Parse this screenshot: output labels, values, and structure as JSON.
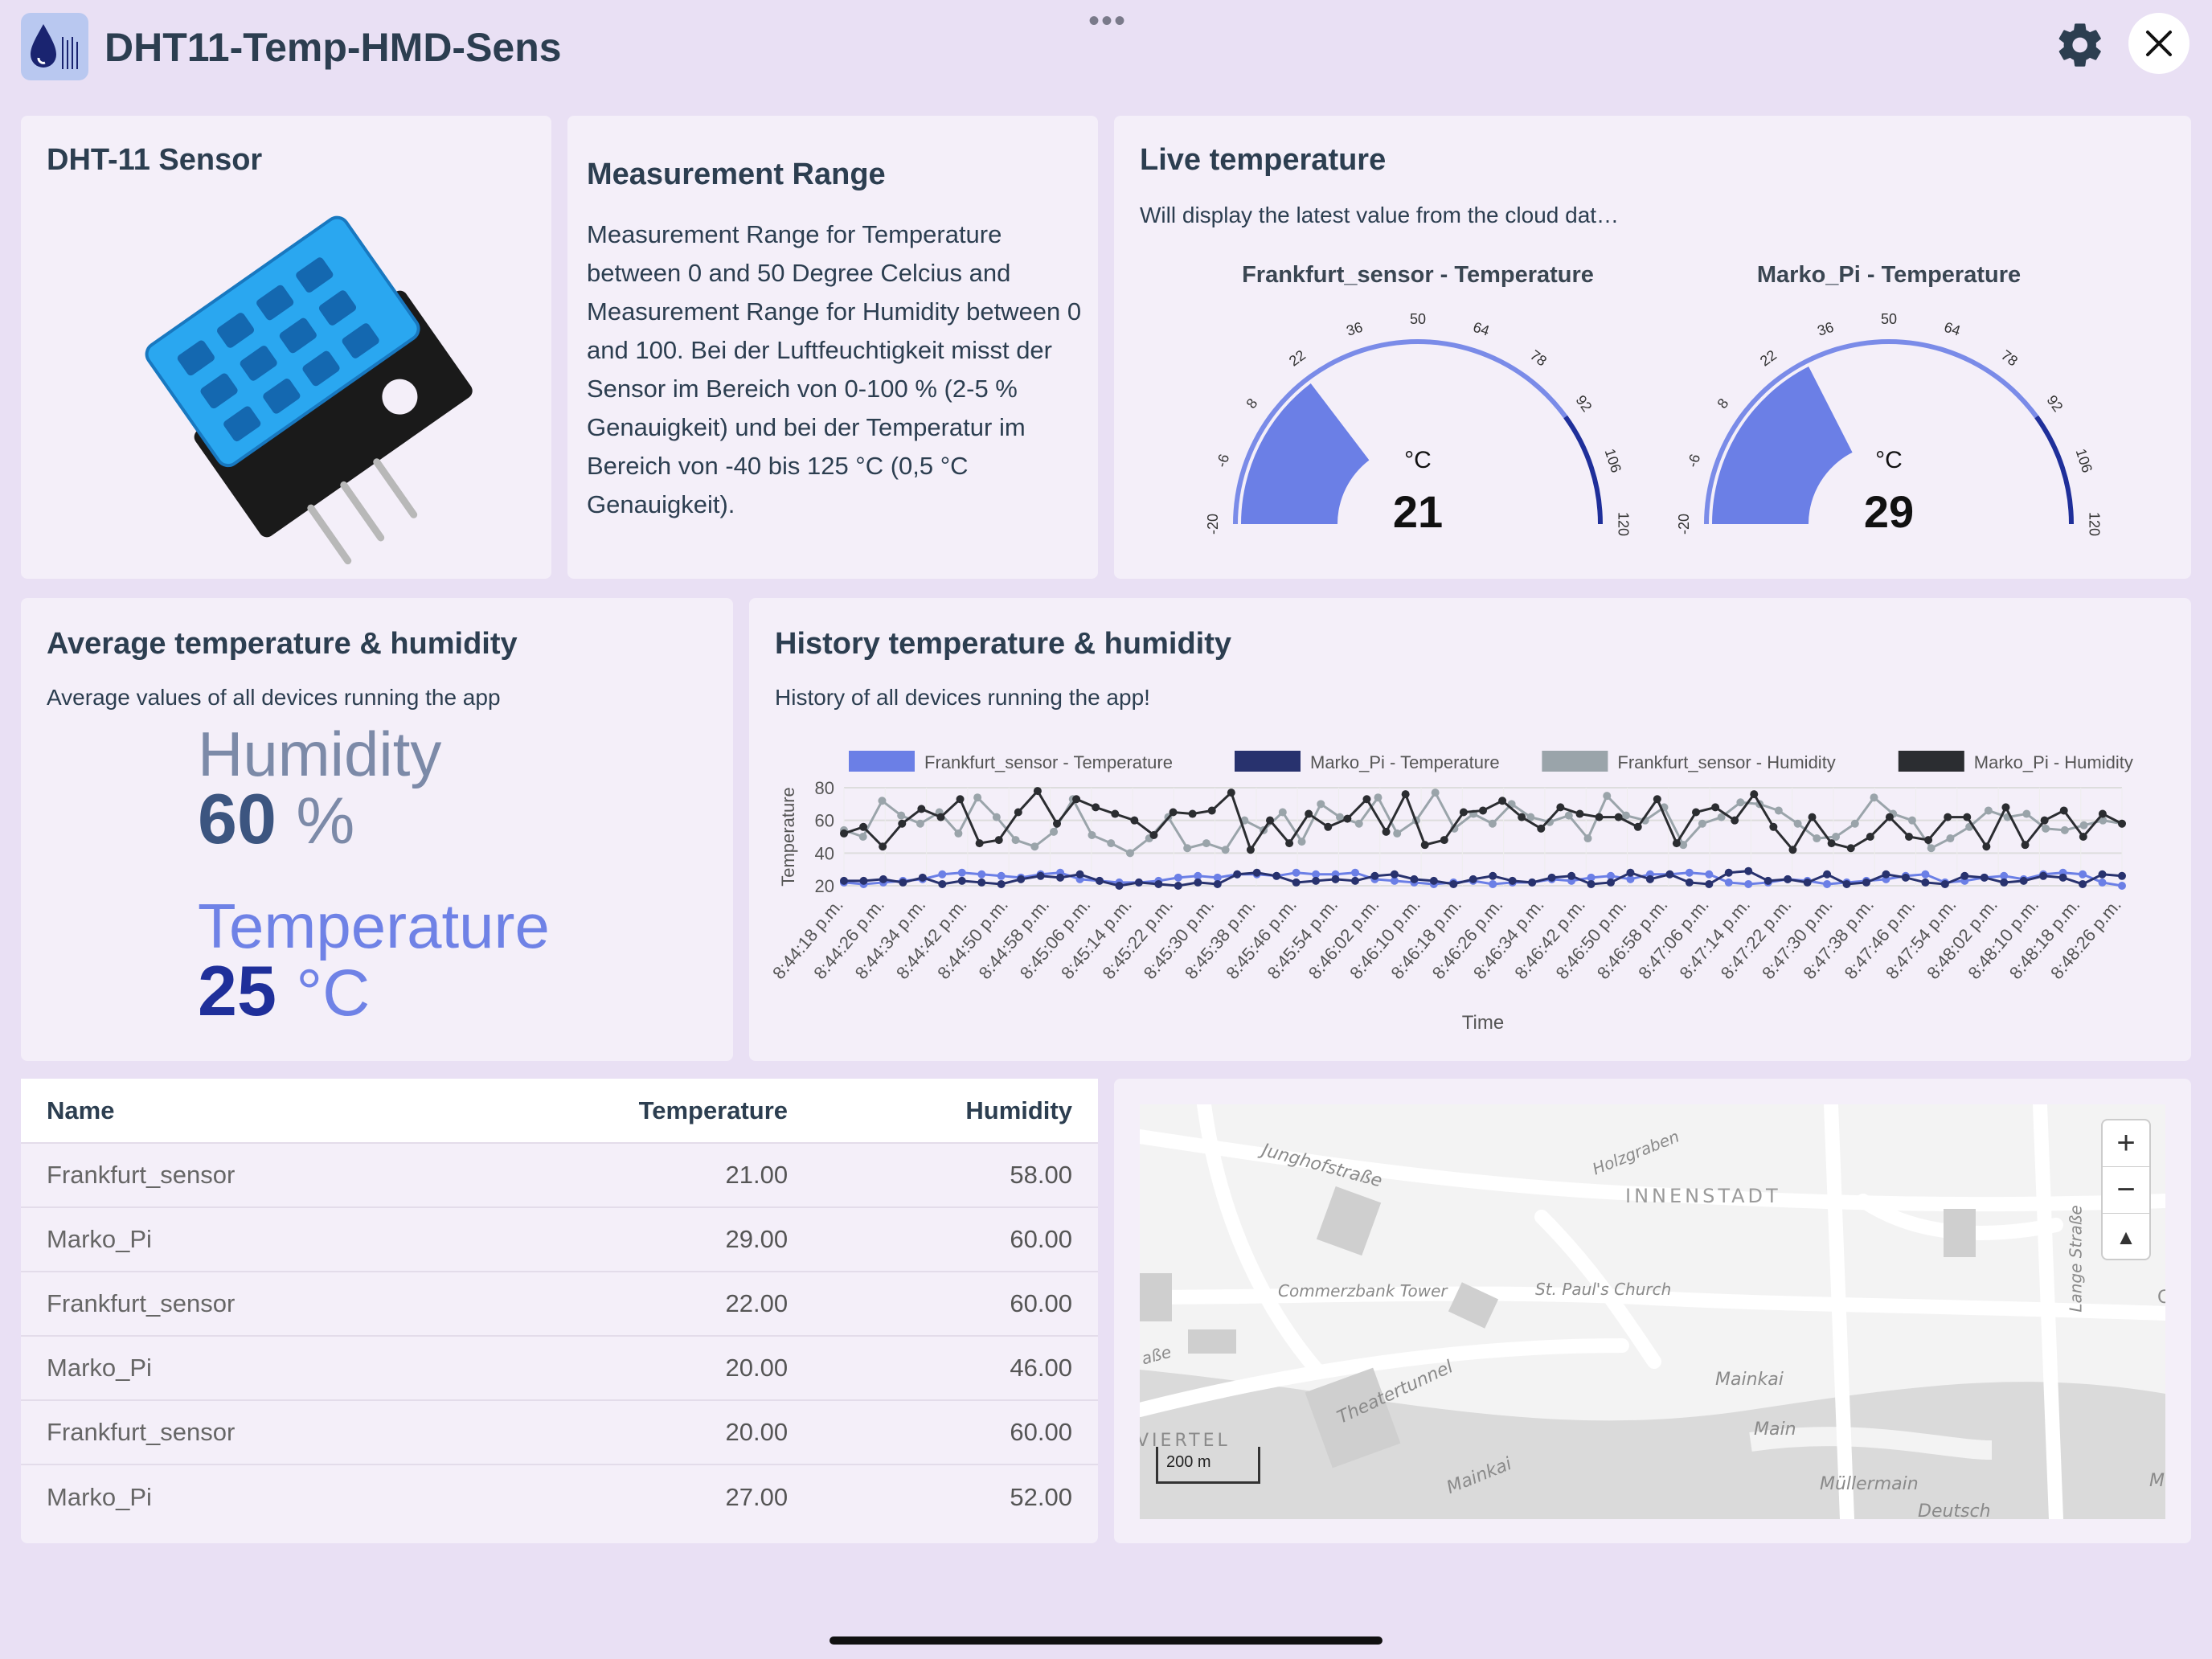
{
  "app": {
    "title": "DHT11-Temp-HMD-Sens",
    "menu_dots": "•••",
    "close_icon": "close-icon",
    "settings_icon": "gear-icon"
  },
  "sensor_card": {
    "title": "DHT-11 Sensor",
    "image": "dht11-sensor-module"
  },
  "range_card": {
    "title": "Measurement Range",
    "text": "Measurement Range for Temperature between 0 and 50 Degree Celcius and Measurement Range for Humidity between 0 and 100. Bei der Luftfeuchtigkeit misst der Sensor im Bereich von 0-100 % (2-5 % Genauigkeit) und bei der Temperatur im Bereich von -40 bis 125 °C (0,5 °C Genauigkeit)."
  },
  "live_card": {
    "title": "Live temperature",
    "subtitle": "Will display the latest value from the cloud dat…",
    "gauges": [
      {
        "title": "Frankfurt_sensor - Temperature",
        "unit": "°C",
        "value": "21",
        "numeric": 21,
        "min": -20,
        "max": 120,
        "ticks": [
          "-20",
          "-6",
          "8",
          "22",
          "36",
          "50",
          "64",
          "78",
          "92",
          "106",
          "120"
        ]
      },
      {
        "title": "Marko_Pi - Temperature",
        "unit": "°C",
        "value": "29",
        "numeric": 29,
        "min": -20,
        "max": 120,
        "ticks": [
          "-20",
          "-6",
          "8",
          "22",
          "36",
          "50",
          "64",
          "78",
          "92",
          "106",
          "120"
        ]
      }
    ],
    "colors": {
      "fill": "#6b7fe6",
      "track_light": "#7a8be8",
      "track_dark": "#1f2f9a"
    }
  },
  "average_card": {
    "title": "Average temperature & humidity",
    "subtitle": "Average values of all devices running the app",
    "humidity_label": "Humidity",
    "humidity_value": "60",
    "humidity_unit": "%",
    "temperature_label": "Temperature",
    "temperature_value": "25",
    "temperature_unit": "°C",
    "colors": {
      "humidity": "#7c8aa8",
      "humidity_value": "#3c5580",
      "temperature": "#6f82e6",
      "temperature_value": "#1f2f9a"
    }
  },
  "history_card": {
    "title": "History temperature & humidity",
    "subtitle": "History of all devices running the app!"
  },
  "chart_data": {
    "type": "line",
    "xlabel": "Time",
    "ylabel": "Temperature",
    "ylim": [
      20,
      80
    ],
    "yticks": [
      "20",
      "40",
      "60",
      "80"
    ],
    "grid": true,
    "legend": "top",
    "x_tick_labels": [
      "8:44:18 p.m.",
      "8:44:26 p.m.",
      "8:44:34 p.m.",
      "8:44:42 p.m.",
      "8:44:50 p.m.",
      "8:44:58 p.m.",
      "8:45:06 p.m.",
      "8:45:14 p.m.",
      "8:45:22 p.m.",
      "8:45:30 p.m.",
      "8:45:38 p.m.",
      "8:45:46 p.m.",
      "8:45:54 p.m.",
      "8:46:02 p.m.",
      "8:46:10 p.m.",
      "8:46:18 p.m.",
      "8:46:26 p.m.",
      "8:46:34 p.m.",
      "8:46:42 p.m.",
      "8:46:50 p.m.",
      "8:46:58 p.m.",
      "8:47:06 p.m.",
      "8:47:14 p.m.",
      "8:47:22 p.m.",
      "8:47:30 p.m.",
      "8:47:38 p.m.",
      "8:47:46 p.m.",
      "8:47:54 p.m.",
      "8:48:02 p.m.",
      "8:48:10 p.m.",
      "8:48:18 p.m.",
      "8:48:26 p.m."
    ],
    "series": [
      {
        "name": "Frankfurt_sensor - Temperature",
        "color": "#6b7fe6",
        "values": [
          22,
          21,
          22,
          23,
          24,
          27,
          28,
          27,
          26,
          25,
          27,
          28,
          24,
          23,
          22,
          22,
          23,
          25,
          26,
          25,
          27,
          27,
          26,
          28,
          27,
          27,
          28,
          24,
          23,
          22,
          21,
          22,
          23,
          21,
          22,
          22,
          24,
          23,
          25,
          26,
          24,
          27,
          27,
          28,
          27,
          22,
          21,
          22,
          24,
          23,
          21,
          22,
          23,
          24,
          26,
          27,
          22,
          23,
          25,
          26,
          24,
          27,
          28,
          27,
          22,
          20
        ]
      },
      {
        "name": "Marko_Pi - Temperature",
        "color": "#28326e",
        "values": [
          23,
          23,
          24,
          22,
          25,
          21,
          23,
          22,
          21,
          24,
          26,
          25,
          27,
          23,
          20,
          22,
          21,
          20,
          22,
          21,
          27,
          28,
          26,
          22,
          23,
          24,
          23,
          26,
          27,
          24,
          23,
          21,
          24,
          26,
          23,
          22,
          25,
          26,
          21,
          22,
          28,
          24,
          27,
          22,
          21,
          28,
          29,
          23,
          24,
          22,
          27,
          21,
          22,
          27,
          25,
          22,
          21,
          26,
          25,
          22,
          23,
          26,
          25,
          21,
          27,
          26
        ]
      },
      {
        "name": "Frankfurt_sensor - Humidity",
        "color": "#9aa4aa",
        "values": [
          54,
          50,
          72,
          63,
          58,
          65,
          52,
          74,
          62,
          48,
          44,
          53,
          73,
          51,
          46,
          40,
          49,
          62,
          43,
          46,
          42,
          60,
          54,
          65,
          47,
          70,
          62,
          58,
          74,
          52,
          60,
          77,
          55,
          64,
          58,
          70,
          62,
          59,
          63,
          49,
          75,
          63,
          60,
          68,
          45,
          58,
          62,
          71,
          70,
          66,
          58,
          49,
          50,
          58,
          74,
          64,
          60,
          43,
          49,
          56,
          66,
          62,
          64,
          55,
          54,
          57,
          60,
          58
        ]
      },
      {
        "name": "Marko_Pi - Humidity",
        "color": "#2b2d31",
        "values": [
          52,
          56,
          44,
          58,
          67,
          62,
          73,
          46,
          48,
          65,
          78,
          58,
          73,
          68,
          64,
          60,
          51,
          65,
          64,
          66,
          77,
          42,
          60,
          46,
          64,
          56,
          61,
          73,
          53,
          76,
          45,
          48,
          65,
          66,
          72,
          62,
          55,
          68,
          64,
          62,
          62,
          56,
          73,
          46,
          65,
          68,
          60,
          76,
          56,
          42,
          62,
          46,
          43,
          50,
          62,
          50,
          48,
          62,
          62,
          44,
          68,
          45,
          60,
          66,
          50,
          64,
          58
        ]
      }
    ]
  },
  "table": {
    "headers": [
      "Name",
      "Temperature",
      "Humidity"
    ],
    "rows": [
      [
        "Frankfurt_sensor",
        "21.00",
        "58.00"
      ],
      [
        "Marko_Pi",
        "29.00",
        "60.00"
      ],
      [
        "Frankfurt_sensor",
        "22.00",
        "60.00"
      ],
      [
        "Marko_Pi",
        "20.00",
        "46.00"
      ],
      [
        "Frankfurt_sensor",
        "20.00",
        "60.00"
      ],
      [
        "Marko_Pi",
        "27.00",
        "52.00"
      ]
    ]
  },
  "map": {
    "labels": [
      "Junghofstraße",
      "Holzgraben",
      "INNENSTADT",
      "Commerzbank Tower",
      "St. Paul's Church",
      "Lange Straße",
      "aße",
      "Theatertunnel",
      "Mainkai",
      "Main",
      "VIERTEL",
      "Mainkai",
      "Müllermain",
      "Deutsch",
      "M",
      "C"
    ],
    "scale": "200 m",
    "zoom_in": "+",
    "zoom_out": "−",
    "compass": "▲"
  }
}
